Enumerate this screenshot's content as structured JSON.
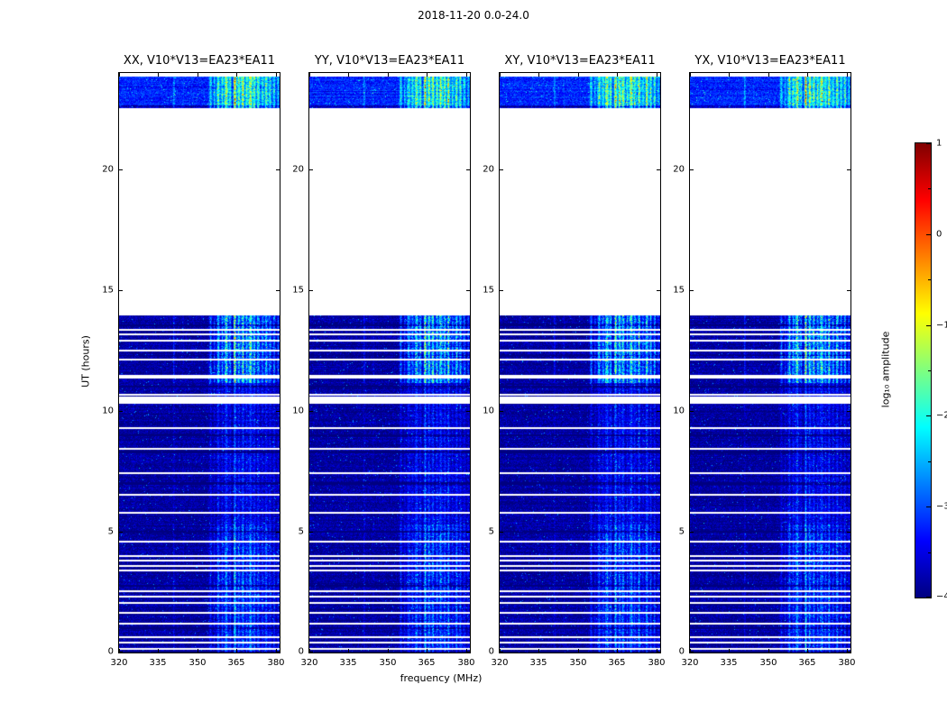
{
  "figure": {
    "title": "2018-11-20 0.0-24.0",
    "xlabel": "frequency (MHz)",
    "ylabel": "UT (hours)",
    "colorbar_label": "log₁₀ amplitude"
  },
  "panels": [
    {
      "title": "XX, V10*V13=EA23*EA11",
      "seed": 101
    },
    {
      "title": "YY, V10*V13=EA23*EA11",
      "seed": 202
    },
    {
      "title": "XY, V10*V13=EA23*EA11",
      "seed": 303
    },
    {
      "title": "YX, V10*V13=EA23*EA11",
      "seed": 404
    }
  ],
  "axes": {
    "x_tick_labels": [
      "320",
      "335",
      "350",
      "365",
      "380"
    ],
    "x_tick_values": [
      320,
      335,
      350,
      365,
      380
    ],
    "y_tick_labels": [
      "0",
      "5",
      "10",
      "15",
      "20"
    ],
    "y_tick_values": [
      0,
      5,
      10,
      15,
      20
    ]
  },
  "colorbar": {
    "tick_labels": [
      "1",
      "0",
      "−1",
      "−2",
      "−3",
      "−4"
    ],
    "tick_values": [
      1,
      0,
      -1,
      -2,
      -3,
      -4
    ],
    "min": -4,
    "max": 1,
    "colormap": "jet"
  },
  "chart_data": {
    "type": "heatmap",
    "title": "2018-11-20 0.0-24.0",
    "xlabel": "frequency (MHz)",
    "ylabel": "UT (hours)",
    "colorbar_label": "log₁₀ amplitude",
    "colormap": "jet",
    "value_range": [
      -4,
      1
    ],
    "x_range": [
      320,
      381.4
    ],
    "y_range": [
      0,
      24
    ],
    "panel_titles": [
      "XX, V10*V13=EA23*EA11",
      "YY, V10*V13=EA23*EA11",
      "XY, V10*V13=EA23*EA11",
      "YX, V10*V13=EA23*EA11"
    ],
    "regions": {
      "main_block": {
        "t": [
          0,
          13.95
        ],
        "base": -3.85,
        "noise": 0.27
      },
      "gap": {
        "t": [
          13.95,
          22.55
        ]
      },
      "top_band": {
        "t": [
          22.55,
          23.85
        ],
        "base": -3.2,
        "noise": 0.3
      }
    },
    "rfi_stripes": [
      [
        341.0,
        0.25,
        0.3
      ],
      [
        344.5,
        0.2,
        0.15
      ],
      [
        355.0,
        0.5,
        0.45
      ],
      [
        356.5,
        0.4,
        0.35
      ],
      [
        358.0,
        0.6,
        0.65
      ],
      [
        359.5,
        0.5,
        0.55
      ],
      [
        361.0,
        0.7,
        0.85
      ],
      [
        362.5,
        0.5,
        0.6
      ],
      [
        364.3,
        0.5,
        1.05
      ],
      [
        365.8,
        0.6,
        0.75
      ],
      [
        367.3,
        0.6,
        0.8
      ],
      [
        368.8,
        0.5,
        0.6
      ],
      [
        370.3,
        0.7,
        0.85
      ],
      [
        371.8,
        0.5,
        0.65
      ],
      [
        373.3,
        0.6,
        0.75
      ],
      [
        374.8,
        0.5,
        0.55
      ],
      [
        376.3,
        0.6,
        0.7
      ],
      [
        377.8,
        0.5,
        0.6
      ],
      [
        379.3,
        0.5,
        0.5
      ],
      [
        380.8,
        0.4,
        0.4
      ]
    ],
    "time_envelopes": [
      [
        0,
        5.3,
        1.5
      ],
      [
        5.3,
        11.15,
        0.95
      ],
      [
        11.15,
        13.95,
        2.5
      ],
      [
        22.55,
        23.85,
        2.6
      ]
    ],
    "white_lines": [
      [
        0.15,
        0.08
      ],
      [
        0.41,
        0.1
      ],
      [
        0.63,
        0.08
      ],
      [
        1.19,
        0.08
      ],
      [
        1.64,
        0.1
      ],
      [
        2.05,
        0.08
      ],
      [
        2.31,
        0.08
      ],
      [
        2.54,
        0.1
      ],
      [
        3.4,
        0.1
      ],
      [
        3.58,
        0.08
      ],
      [
        3.81,
        0.1
      ],
      [
        3.99,
        0.08
      ],
      [
        4.59,
        0.1
      ],
      [
        5.79,
        0.08
      ],
      [
        6.53,
        0.1
      ],
      [
        7.43,
        0.08
      ],
      [
        8.44,
        0.1
      ],
      [
        9.29,
        0.08
      ],
      [
        10.45,
        0.3
      ],
      [
        10.68,
        0.1
      ],
      [
        11.42,
        0.12
      ],
      [
        12.13,
        0.1
      ],
      [
        12.5,
        0.08
      ],
      [
        12.91,
        0.1
      ],
      [
        13.18,
        0.08
      ],
      [
        13.37,
        0.08
      ]
    ],
    "dark_rows": [
      [
        0.05,
        0.08
      ],
      [
        1.0,
        0.08
      ],
      [
        2.75,
        0.08
      ],
      [
        5.0,
        0.1
      ],
      [
        7.0,
        0.08
      ],
      [
        8.3,
        0.12
      ],
      [
        9.0,
        0.08
      ],
      [
        11.0,
        0.08
      ],
      [
        12.3,
        0.06
      ],
      [
        13.55,
        0.08
      ],
      [
        22.6,
        0.1
      ]
    ]
  }
}
